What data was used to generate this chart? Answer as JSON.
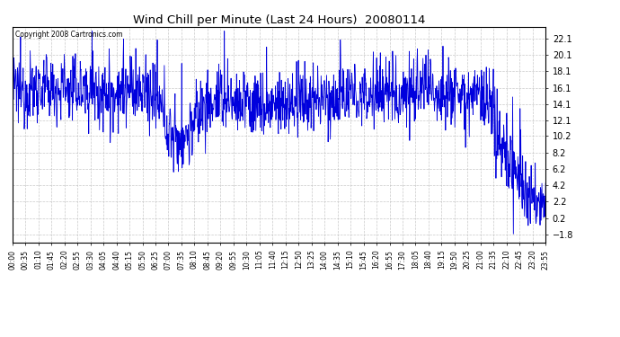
{
  "title": "Wind Chill per Minute (Last 24 Hours)  20080114",
  "copyright_text": "Copyright 2008 Cartronics.com",
  "line_color": "#0000dd",
  "bg_color": "#ffffff",
  "plot_bg_color": "#ffffff",
  "grid_color": "#bbbbbb",
  "yticks": [
    22.1,
    20.1,
    18.1,
    16.1,
    14.1,
    12.1,
    10.2,
    8.2,
    6.2,
    4.2,
    2.2,
    0.2,
    -1.8
  ],
  "ylim": [
    -2.8,
    23.5
  ],
  "xtick_labels": [
    "00:00",
    "00:35",
    "01:10",
    "01:45",
    "02:20",
    "02:55",
    "03:30",
    "04:05",
    "04:40",
    "05:15",
    "05:50",
    "06:25",
    "07:00",
    "07:35",
    "08:10",
    "08:45",
    "09:20",
    "09:55",
    "10:30",
    "11:05",
    "11:40",
    "12:15",
    "12:50",
    "13:25",
    "14:00",
    "14:35",
    "15:10",
    "15:45",
    "16:20",
    "16:55",
    "17:30",
    "18:05",
    "18:40",
    "19:15",
    "19:50",
    "20:25",
    "21:00",
    "21:35",
    "22:10",
    "22:45",
    "23:20",
    "23:55"
  ],
  "num_points": 1440,
  "figwidth": 6.9,
  "figheight": 3.75,
  "dpi": 100
}
